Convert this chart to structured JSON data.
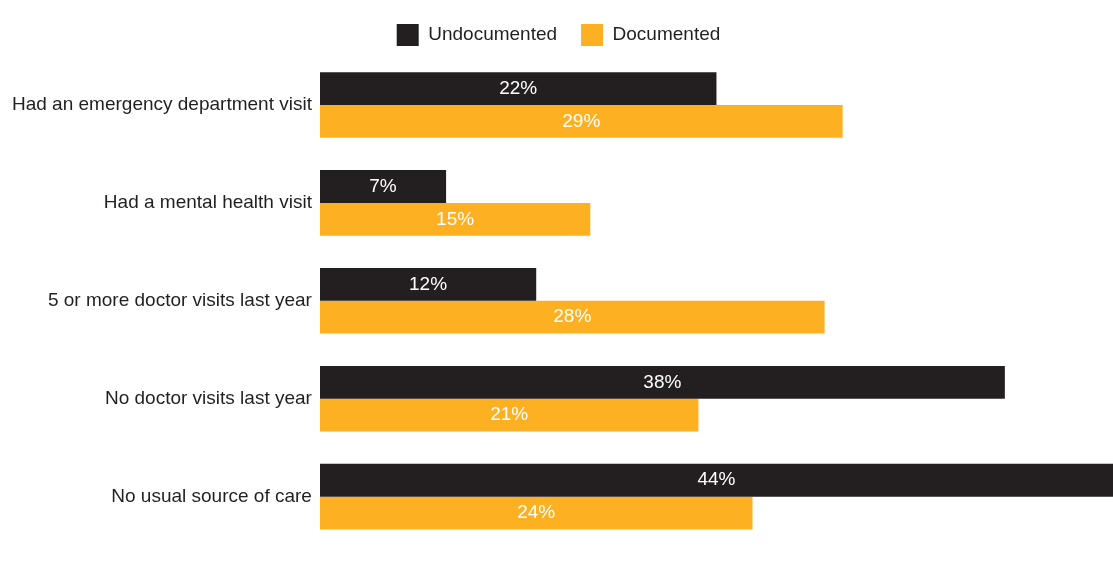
{
  "chart_data": {
    "type": "bar",
    "orientation": "horizontal",
    "legend": "top",
    "categories": [
      "Had an emergency department visit",
      "Had a mental health visit",
      "5 or more doctor visits last year",
      "No doctor visits last year",
      "No usual source of care"
    ],
    "series": [
      {
        "name": "Undocumented",
        "color": "#231f20",
        "values": [
          22,
          7,
          12,
          38,
          44
        ],
        "value_labels": [
          "22%",
          "7%",
          "12%",
          "38%",
          "44%"
        ]
      },
      {
        "name": "Documented",
        "color": "#fdb022",
        "values": [
          29,
          15,
          28,
          21,
          24
        ],
        "value_labels": [
          "29%",
          "15%",
          "28%",
          "21%",
          "24%"
        ]
      }
    ]
  }
}
